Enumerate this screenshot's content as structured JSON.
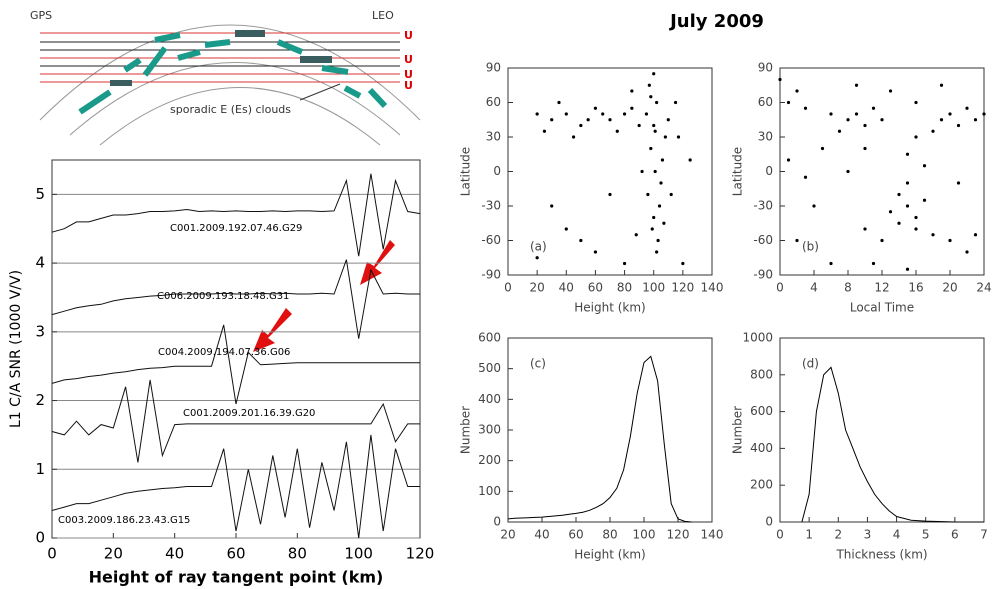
{
  "figure_title": "July 2009",
  "diagram": {
    "source": "GPS",
    "receiver": "LEO",
    "clouds_label": "sporadic E (Es) clouds",
    "receiver_marks": [
      "U",
      "U",
      "U",
      "U"
    ]
  },
  "chart_data": [
    {
      "type": "line",
      "ylabel": "L1 C/A SNR (1000 V/V)",
      "xlabel": "Height of ray tangent point (km)",
      "xlim": [
        0,
        120
      ],
      "xticks": [
        0,
        20,
        40,
        60,
        80,
        100,
        120
      ],
      "ylim": [
        0,
        5.5
      ],
      "yticks": [
        0,
        1,
        2,
        3,
        4,
        5
      ],
      "grid": true,
      "x": [
        0,
        4,
        8,
        12,
        16,
        20,
        24,
        28,
        32,
        36,
        40,
        44,
        48,
        52,
        56,
        60,
        64,
        68,
        72,
        76,
        80,
        84,
        88,
        92,
        96,
        100,
        104,
        108,
        112,
        116,
        120
      ],
      "series": [
        {
          "name": "C001.2009.192.07.46.G29",
          "color": "#111111",
          "values": [
            4.45,
            4.5,
            4.6,
            4.6,
            4.65,
            4.7,
            4.7,
            4.72,
            4.75,
            4.75,
            4.76,
            4.78,
            4.75,
            4.76,
            4.75,
            4.76,
            4.75,
            4.75,
            4.76,
            4.75,
            4.76,
            4.76,
            4.75,
            4.76,
            5.2,
            4.1,
            5.3,
            4.2,
            5.2,
            4.75,
            4.72
          ]
        },
        {
          "name": "C006.2009.193.18.48.G31",
          "color": "#111111",
          "values": [
            3.25,
            3.3,
            3.35,
            3.38,
            3.4,
            3.45,
            3.48,
            3.5,
            3.52,
            3.53,
            3.55,
            3.55,
            3.55,
            3.55,
            3.56,
            3.55,
            3.55,
            3.56,
            3.55,
            3.56,
            3.55,
            3.55,
            3.56,
            3.55,
            4.05,
            2.9,
            3.9,
            3.55,
            3.56,
            3.55,
            3.55
          ]
        },
        {
          "name": "C004.2009.194.07.36.G06",
          "color": "#111111",
          "values": [
            2.25,
            2.3,
            2.32,
            2.35,
            2.37,
            2.4,
            2.42,
            2.45,
            2.47,
            2.48,
            2.5,
            2.5,
            2.5,
            2.5,
            3.1,
            1.95,
            2.7,
            2.52,
            2.53,
            2.54,
            2.55,
            2.55,
            2.55,
            2.55,
            2.55,
            2.55,
            2.55,
            2.55,
            2.55,
            2.55,
            2.55
          ]
        },
        {
          "name": "C001.2009.201.16.39.G20",
          "color": "#111111",
          "values": [
            1.55,
            1.5,
            1.7,
            1.5,
            1.65,
            1.6,
            2.2,
            1.1,
            2.3,
            1.2,
            1.65,
            1.66,
            1.66,
            1.66,
            1.66,
            1.66,
            1.66,
            1.66,
            1.66,
            1.66,
            1.66,
            1.66,
            1.66,
            1.66,
            1.66,
            1.66,
            1.66,
            1.95,
            1.4,
            1.66,
            1.66
          ]
        },
        {
          "name": "C003.2009.186.23.43.G15",
          "color": "#111111",
          "values": [
            0.4,
            0.45,
            0.5,
            0.5,
            0.55,
            0.6,
            0.65,
            0.68,
            0.7,
            0.72,
            0.73,
            0.75,
            0.75,
            0.75,
            1.3,
            0.1,
            1.0,
            0.2,
            1.2,
            0.3,
            1.3,
            0.15,
            1.1,
            0.4,
            1.4,
            0.0,
            1.5,
            0.1,
            1.3,
            0.75,
            0.75
          ]
        }
      ]
    },
    {
      "type": "scatter",
      "annotation": "(a)",
      "xlabel": "Height (km)",
      "ylabel": "Latitude",
      "color": "#000000",
      "xlim": [
        0,
        140
      ],
      "xticks": [
        0,
        20,
        40,
        60,
        80,
        100,
        120,
        140
      ],
      "ylim": [
        -90,
        90
      ],
      "yticks": [
        -90,
        -60,
        -30,
        0,
        30,
        60,
        90
      ],
      "x": [
        100,
        102,
        98,
        105,
        100,
        103,
        97,
        108,
        95,
        101,
        104,
        99,
        106,
        100,
        96,
        110,
        102,
        98,
        107,
        101,
        30,
        40,
        50,
        60,
        70,
        80,
        25,
        35,
        45,
        55,
        65,
        75,
        85,
        90,
        20,
        40,
        60,
        80,
        30,
        70,
        50,
        120,
        115,
        125,
        20,
        88,
        85,
        112,
        92,
        117
      ],
      "values": [
        40,
        60,
        20,
        -10,
        -40,
        -60,
        75,
        30,
        50,
        0,
        -30,
        -50,
        10,
        85,
        -20,
        45,
        -70,
        65,
        -45,
        35,
        45,
        50,
        40,
        55,
        45,
        50,
        35,
        60,
        30,
        45,
        50,
        35,
        55,
        40,
        50,
        -50,
        -70,
        -80,
        -30,
        -20,
        -60,
        -80,
        60,
        10,
        -75,
        -55,
        70,
        -20,
        0,
        30
      ]
    },
    {
      "type": "scatter",
      "annotation": "(b)",
      "xlabel": "Local Time",
      "ylabel": "Latitude",
      "color": "#000000",
      "xlim": [
        0,
        24
      ],
      "xticks": [
        0,
        4,
        8,
        12,
        16,
        20,
        24
      ],
      "ylim": [
        -90,
        90
      ],
      "yticks": [
        -90,
        -60,
        -30,
        0,
        30,
        60,
        90
      ],
      "x": [
        8,
        9,
        10,
        11,
        7,
        6,
        12,
        19,
        20,
        21,
        22,
        23,
        18,
        24,
        1,
        2,
        3,
        0,
        14,
        15,
        16,
        15,
        17,
        16,
        14,
        18,
        13,
        17,
        15,
        16,
        12,
        10,
        20,
        22,
        4,
        2,
        6,
        8,
        10,
        5,
        21,
        23,
        3,
        13,
        16,
        9,
        19,
        11,
        15,
        1
      ],
      "values": [
        45,
        50,
        40,
        55,
        35,
        50,
        45,
        45,
        50,
        40,
        55,
        45,
        35,
        50,
        60,
        70,
        55,
        80,
        -20,
        -30,
        -40,
        -10,
        -25,
        -50,
        -45,
        -55,
        -35,
        5,
        15,
        30,
        -60,
        -50,
        -60,
        -70,
        -30,
        -60,
        -80,
        0,
        20,
        20,
        -10,
        -55,
        -5,
        70,
        60,
        75,
        75,
        -80,
        -85,
        10
      ]
    },
    {
      "type": "line",
      "annotation": "(c)",
      "xlabel": "Height (km)",
      "ylabel": "Number",
      "color": "#000000",
      "xlim": [
        20,
        140
      ],
      "xticks": [
        20,
        40,
        60,
        80,
        100,
        120,
        140
      ],
      "ylim": [
        0,
        600
      ],
      "yticks": [
        0,
        100,
        200,
        300,
        400,
        500,
        600
      ],
      "x": [
        20,
        24,
        28,
        32,
        36,
        40,
        44,
        48,
        52,
        56,
        60,
        64,
        68,
        72,
        76,
        80,
        84,
        88,
        92,
        96,
        100,
        104,
        108,
        112,
        116,
        120,
        124,
        128
      ],
      "values": [
        10,
        12,
        13,
        14,
        15,
        16,
        18,
        20,
        22,
        25,
        28,
        32,
        38,
        48,
        60,
        80,
        110,
        170,
        280,
        420,
        520,
        540,
        460,
        250,
        60,
        10,
        2,
        0
      ]
    },
    {
      "type": "line",
      "annotation": "(d)",
      "xlabel": "Thickness (km)",
      "ylabel": "Number",
      "color": "#000000",
      "xlim": [
        0,
        7
      ],
      "xticks": [
        0,
        1,
        2,
        3,
        4,
        5,
        6,
        7
      ],
      "ylim": [
        0,
        1000
      ],
      "yticks": [
        0,
        200,
        400,
        600,
        800,
        1000
      ],
      "x": [
        0.75,
        1,
        1.25,
        1.5,
        1.75,
        2,
        2.25,
        2.5,
        2.75,
        3,
        3.25,
        3.5,
        3.75,
        4,
        4.5,
        5,
        6,
        7
      ],
      "values": [
        0,
        150,
        600,
        800,
        840,
        700,
        500,
        400,
        300,
        220,
        150,
        100,
        60,
        30,
        10,
        5,
        0,
        0
      ]
    }
  ]
}
